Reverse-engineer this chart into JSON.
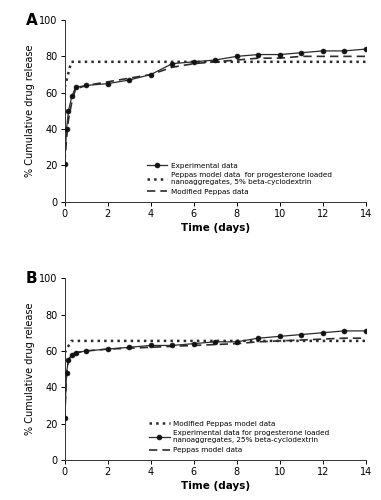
{
  "panel_A": {
    "title": "A",
    "experimental_x": [
      0,
      0.083,
      0.17,
      0.33,
      0.5,
      1,
      2,
      3,
      4,
      5,
      6,
      7,
      8,
      9,
      10,
      11,
      12,
      13,
      14
    ],
    "experimental_y": [
      21,
      40,
      50,
      58,
      63,
      64,
      65,
      67,
      70,
      76,
      77,
      78,
      80,
      81,
      81,
      82,
      83,
      83,
      84
    ],
    "peppas_x": [
      0,
      0.3,
      0.5,
      1,
      2,
      3,
      4,
      5,
      6,
      7,
      8,
      9,
      10,
      11,
      12,
      13,
      14
    ],
    "peppas_y": [
      63,
      77,
      77,
      77,
      77,
      77,
      77,
      77,
      77,
      77,
      77,
      77,
      77,
      77,
      77,
      77,
      77
    ],
    "mod_peppas_x": [
      0,
      0.083,
      0.17,
      0.33,
      0.5,
      1,
      2,
      3,
      4,
      5,
      6,
      7,
      8,
      9,
      10,
      11,
      12,
      13,
      14
    ],
    "mod_peppas_y": [
      21,
      35,
      45,
      55,
      62,
      64,
      66,
      68,
      70,
      74,
      76,
      77,
      78,
      79,
      79,
      80,
      80,
      80,
      80
    ],
    "legend": [
      "Experimental data",
      "Peppas model data  for progesterone loaded\nnanoaggregates, 5% beta-cyclodextrin",
      "Modified Peppas data"
    ]
  },
  "panel_B": {
    "title": "B",
    "experimental_x": [
      0,
      0.083,
      0.17,
      0.33,
      0.5,
      1,
      2,
      3,
      4,
      5,
      6,
      7,
      8,
      9,
      10,
      11,
      12,
      13,
      14
    ],
    "experimental_y": [
      23,
      48,
      55,
      58,
      59,
      60,
      61,
      62,
      63,
      63,
      64,
      65,
      65,
      67,
      68,
      69,
      70,
      71,
      71
    ],
    "mod_peppas_x": [
      0,
      0.3,
      0.5,
      1,
      2,
      3,
      4,
      5,
      6,
      7,
      8,
      9,
      10,
      11,
      12,
      13,
      14
    ],
    "mod_peppas_y": [
      59,
      65.5,
      65.5,
      65.5,
      65.5,
      65.5,
      65.5,
      65.5,
      65.5,
      65.5,
      65.5,
      65.5,
      65.5,
      65.5,
      65.5,
      65.5,
      65.5
    ],
    "peppas_x": [
      0,
      0.083,
      0.17,
      0.33,
      0.5,
      1,
      2,
      3,
      4,
      5,
      6,
      7,
      8,
      9,
      10,
      11,
      12,
      13,
      14
    ],
    "peppas_y": [
      23,
      48,
      55,
      58,
      59,
      60,
      61,
      61.5,
      62,
      62.5,
      63,
      63.5,
      64,
      65,
      65.5,
      66,
      66.5,
      67,
      67
    ],
    "legend": [
      "Modified Peppas model data",
      "Experimental data for progesterone loaded\nnanoaggregates, 25% beta-cyclodextrin",
      "Peppas model data"
    ]
  },
  "ylabel": "% Cumulative drug release",
  "xlabel": "Time (days)",
  "ylim": [
    0,
    100
  ],
  "xlim": [
    0,
    14
  ],
  "xticks": [
    0,
    2,
    4,
    6,
    8,
    10,
    12,
    14
  ],
  "yticks": [
    0,
    20,
    40,
    60,
    80,
    100
  ],
  "line_color": "#2b2b2b",
  "bg_color": "#ffffff"
}
